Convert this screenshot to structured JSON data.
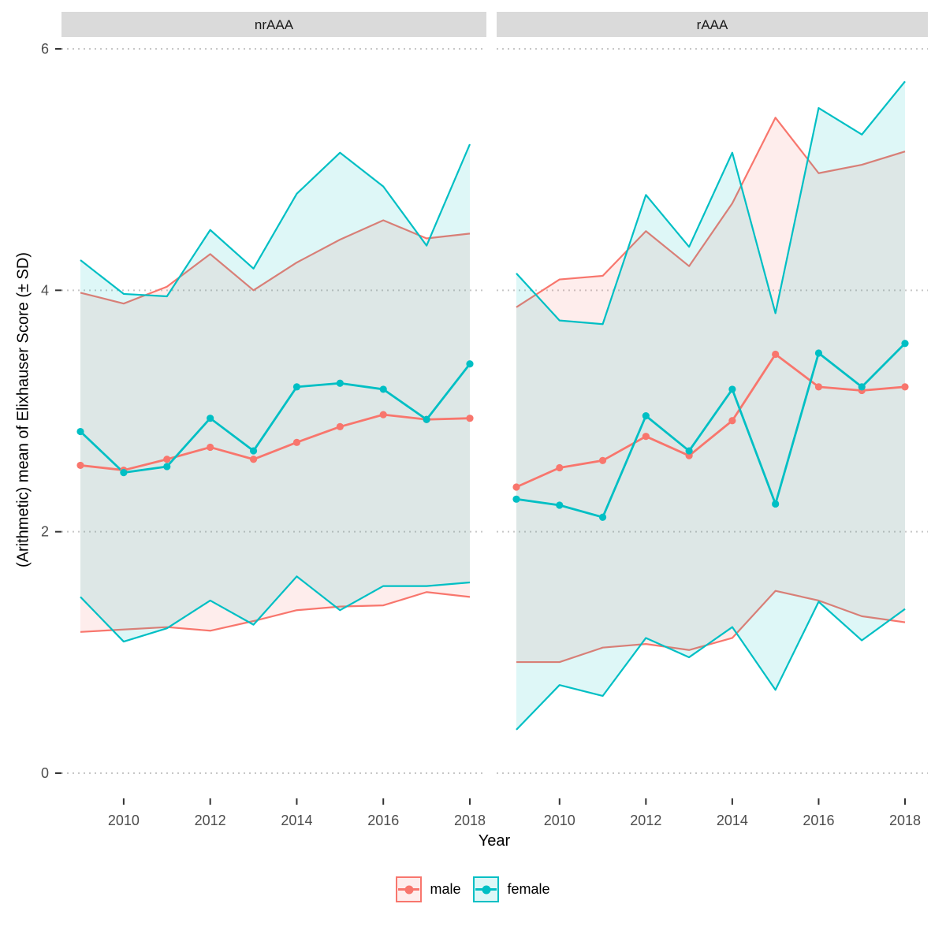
{
  "figure": {
    "kind": "faceted ribbon + line chart (mean ± SD)",
    "background": "#ffffff",
    "strip_fill": "#DADADA",
    "grid_color": "#C7C7C7",
    "tick_color": "#333333",
    "tick_label_color": "#4D4D4D"
  },
  "legend": {
    "items": [
      {
        "label": "male",
        "color": "#F8766D"
      },
      {
        "label": "female",
        "color": "#00BFC4"
      }
    ]
  },
  "chart_data": {
    "type": "line",
    "title": "",
    "xlabel": "Year",
    "ylabel": "(Arithmetic) mean of Elixhauser Score (± SD)",
    "x": [
      2009,
      2010,
      2011,
      2012,
      2013,
      2014,
      2015,
      2016,
      2017,
      2018
    ],
    "x_tick_labels": [
      "2010",
      "2012",
      "2014",
      "2016",
      "2018"
    ],
    "x_ticks": [
      2010,
      2012,
      2014,
      2016,
      2018
    ],
    "y_ticks": [
      0,
      2,
      4,
      6
    ],
    "y_tick_labels": [
      "0",
      "2",
      "4",
      "6"
    ],
    "ylim": [
      -0.2,
      6.3
    ],
    "grid": "horizontal dotted major lines only",
    "legend_position": "bottom",
    "ribbon_meaning": "mean ± SD",
    "ribbon_alpha": 0.13,
    "facets": [
      {
        "label": "nrAAA",
        "series": [
          {
            "name": "male",
            "color": "#F8766D",
            "mean": [
              2.55,
              2.51,
              2.6,
              2.7,
              2.6,
              2.74,
              2.87,
              2.97,
              2.93,
              2.94
            ],
            "upper": [
              3.98,
              3.89,
              4.03,
              4.3,
              4.0,
              4.23,
              4.42,
              4.58,
              4.43,
              4.47
            ],
            "lower": [
              1.17,
              1.19,
              1.21,
              1.18,
              1.26,
              1.35,
              1.38,
              1.39,
              1.5,
              1.46
            ]
          },
          {
            "name": "female",
            "color": "#00BFC4",
            "mean": [
              2.83,
              2.49,
              2.54,
              2.94,
              2.67,
              3.2,
              3.23,
              3.18,
              2.93,
              3.39
            ],
            "upper": [
              4.25,
              3.97,
              3.95,
              4.5,
              4.18,
              4.8,
              5.14,
              4.86,
              4.37,
              5.21
            ],
            "lower": [
              1.46,
              1.09,
              1.2,
              1.43,
              1.23,
              1.63,
              1.35,
              1.55,
              1.55,
              1.58
            ]
          }
        ]
      },
      {
        "label": "rAAA",
        "series": [
          {
            "name": "male",
            "color": "#F8766D",
            "mean": [
              2.37,
              2.53,
              2.59,
              2.79,
              2.63,
              2.92,
              3.47,
              3.2,
              3.17,
              3.2
            ],
            "upper": [
              3.86,
              4.09,
              4.12,
              4.49,
              4.2,
              4.72,
              5.43,
              4.97,
              5.04,
              5.15
            ],
            "lower": [
              0.92,
              0.92,
              1.04,
              1.07,
              1.02,
              1.12,
              1.51,
              1.43,
              1.3,
              1.25
            ]
          },
          {
            "name": "female",
            "color": "#00BFC4",
            "mean": [
              2.27,
              2.22,
              2.12,
              2.96,
              2.67,
              3.18,
              2.23,
              3.48,
              3.2,
              3.56
            ],
            "upper": [
              4.14,
              3.75,
              3.72,
              4.79,
              4.36,
              5.14,
              3.81,
              5.51,
              5.29,
              5.73
            ],
            "lower": [
              0.36,
              0.73,
              0.64,
              1.12,
              0.96,
              1.21,
              0.69,
              1.42,
              1.1,
              1.36
            ]
          }
        ]
      }
    ]
  }
}
